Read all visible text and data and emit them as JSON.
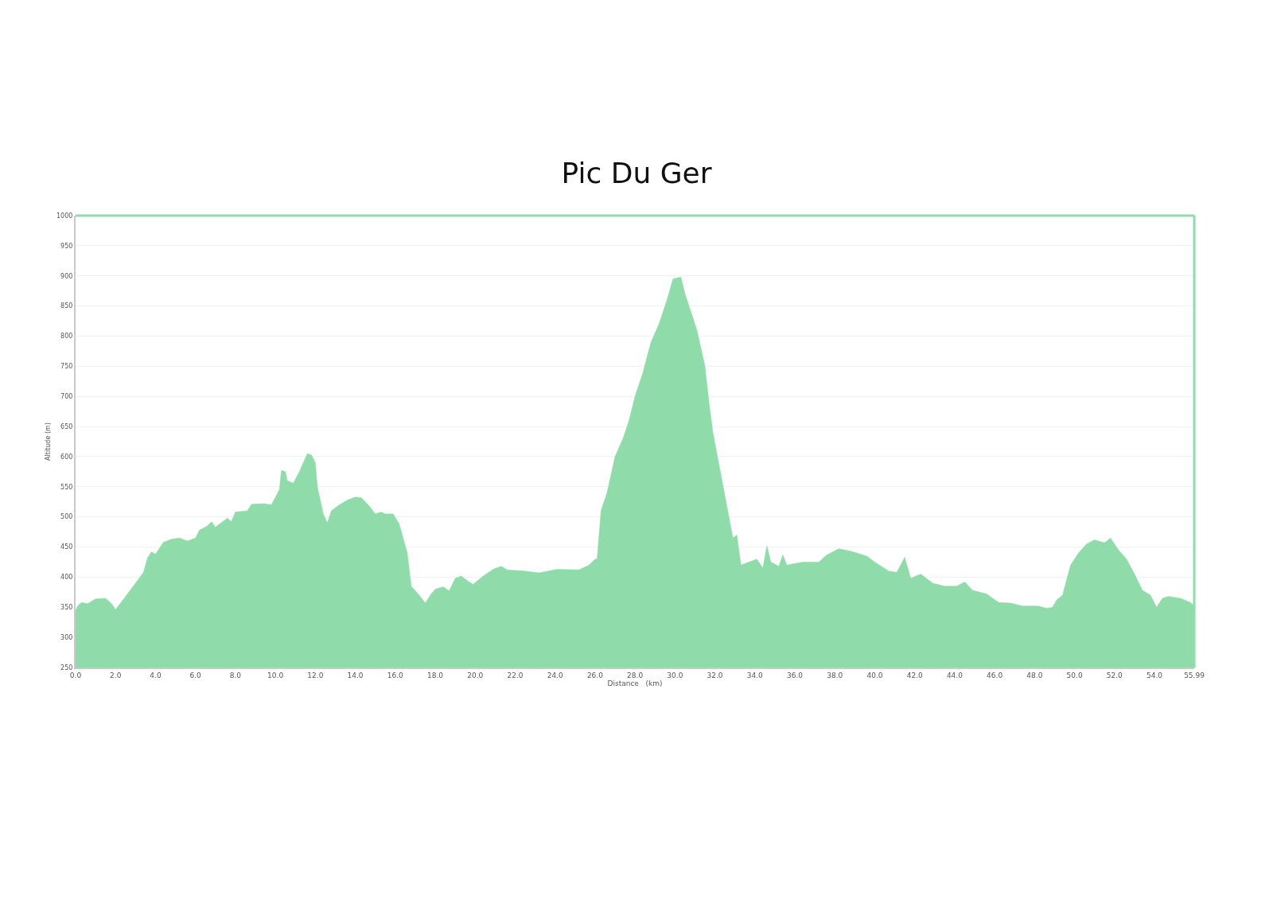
{
  "chart_data": {
    "type": "area",
    "title": "Pic Du Ger",
    "xlabel": "Distance   (km)",
    "ylabel": "Altitude (m)",
    "x": [
      0,
      0.12,
      0.3,
      0.6,
      1.0,
      1.5,
      1.8,
      2.0,
      2.5,
      3.0,
      3.4,
      3.6,
      3.8,
      4.0,
      4.4,
      4.8,
      5.2,
      5.6,
      6.0,
      6.2,
      6.6,
      6.8,
      7.0,
      7.6,
      7.8,
      8.0,
      8.6,
      8.8,
      9.4,
      9.8,
      10.2,
      10.3,
      10.5,
      10.6,
      10.9,
      11.2,
      11.6,
      11.8,
      12.0,
      12.1,
      12.4,
      12.6,
      12.8,
      13.2,
      13.6,
      14.0,
      14.3,
      14.7,
      15.0,
      15.3,
      15.5,
      15.9,
      16.2,
      16.6,
      16.8,
      17.2,
      17.5,
      17.8,
      18.0,
      18.4,
      18.7,
      19.0,
      19.3,
      19.7,
      19.9,
      20.4,
      20.9,
      21.3,
      21.6,
      22.5,
      23.2,
      24.1,
      25.2,
      25.7,
      26.0,
      26.1,
      26.3,
      26.6,
      27.0,
      27.4,
      27.7,
      28.0,
      28.4,
      28.8,
      29.2,
      29.6,
      29.9,
      30.3,
      30.5,
      30.9,
      31.1,
      31.3,
      31.5,
      31.7,
      31.9,
      32.3,
      32.7,
      32.9,
      33.1,
      33.3,
      33.7,
      34.1,
      34.4,
      34.6,
      34.8,
      35.2,
      35.4,
      35.6,
      36.4,
      37.2,
      37.6,
      38.2,
      38.8,
      39.6,
      40.0,
      40.7,
      41.1,
      41.5,
      41.8,
      42.3,
      42.9,
      43.5,
      44.1,
      44.5,
      44.9,
      45.6,
      46.2,
      46.8,
      47.4,
      48.2,
      48.6,
      48.9,
      49.1,
      49.4,
      49.6,
      49.8,
      50.2,
      50.6,
      51.0,
      51.5,
      51.8,
      52.2,
      52.6,
      53.0,
      53.4,
      53.8,
      54.1,
      54.4,
      54.7,
      55.3,
      55.8,
      55.99
    ],
    "values": [
      345,
      353,
      358,
      356,
      364,
      365,
      356,
      346,
      368,
      390,
      408,
      432,
      442,
      438,
      458,
      463,
      465,
      460,
      465,
      478,
      485,
      492,
      483,
      498,
      492,
      508,
      510,
      521,
      522,
      520,
      545,
      577,
      575,
      560,
      556,
      575,
      605,
      603,
      590,
      550,
      505,
      490,
      510,
      520,
      528,
      533,
      532,
      518,
      505,
      508,
      505,
      505,
      488,
      440,
      385,
      370,
      357,
      372,
      380,
      384,
      377,
      398,
      402,
      392,
      388,
      402,
      413,
      418,
      412,
      410,
      407,
      413,
      412,
      420,
      430,
      430,
      510,
      540,
      600,
      630,
      660,
      700,
      740,
      790,
      820,
      860,
      895,
      898,
      870,
      830,
      810,
      780,
      750,
      690,
      640,
      570,
      500,
      465,
      470,
      420,
      425,
      430,
      415,
      452,
      425,
      418,
      437,
      420,
      425,
      425,
      437,
      447,
      443,
      435,
      425,
      410,
      408,
      433,
      398,
      405,
      390,
      385,
      385,
      392,
      378,
      372,
      358,
      357,
      352,
      352,
      348,
      350,
      362,
      370,
      395,
      420,
      440,
      455,
      462,
      457,
      465,
      445,
      430,
      405,
      378,
      370,
      350,
      365,
      368,
      365,
      358,
      352
    ],
    "color": "#8fdba9",
    "xlim": [
      0,
      55.99
    ],
    "xticks": [
      {
        "value": 0,
        "label": "0.0"
      },
      {
        "value": 2,
        "label": "2.0"
      },
      {
        "value": 4,
        "label": "4.0"
      },
      {
        "value": 6,
        "label": "6.0"
      },
      {
        "value": 8,
        "label": "8.0"
      },
      {
        "value": 10,
        "label": "10.0"
      },
      {
        "value": 12,
        "label": "12.0"
      },
      {
        "value": 14,
        "label": "14.0"
      },
      {
        "value": 16,
        "label": "16.0"
      },
      {
        "value": 18,
        "label": "18.0"
      },
      {
        "value": 20,
        "label": "20.0"
      },
      {
        "value": 22,
        "label": "22.0"
      },
      {
        "value": 24,
        "label": "24.0"
      },
      {
        "value": 26,
        "label": "26.0"
      },
      {
        "value": 28,
        "label": "28.0"
      },
      {
        "value": 30,
        "label": "30.0"
      },
      {
        "value": 32,
        "label": "32.0"
      },
      {
        "value": 34,
        "label": "34.0"
      },
      {
        "value": 36,
        "label": "36.0"
      },
      {
        "value": 38,
        "label": "38.0"
      },
      {
        "value": 40,
        "label": "40.0"
      },
      {
        "value": 42,
        "label": "42.0"
      },
      {
        "value": 44,
        "label": "44.0"
      },
      {
        "value": 46,
        "label": "46.0"
      },
      {
        "value": 48,
        "label": "48.0"
      },
      {
        "value": 50,
        "label": "50.0"
      },
      {
        "value": 52,
        "label": "52.0"
      },
      {
        "value": 54,
        "label": "54.0"
      },
      {
        "value": 55.99,
        "label": "55.99"
      }
    ],
    "ylim": [
      250,
      1000
    ],
    "yticks": [
      250,
      300,
      350,
      400,
      450,
      500,
      550,
      600,
      650,
      700,
      750,
      800,
      850,
      900,
      950,
      1000
    ],
    "grid": "y",
    "legend": false,
    "marker": "none",
    "line_style": "solid"
  }
}
